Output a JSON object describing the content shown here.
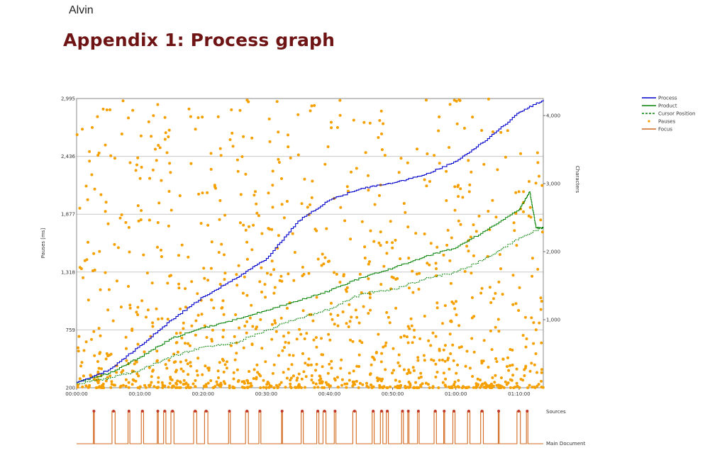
{
  "author": "Alvin",
  "heading": "Appendix 1: Process graph",
  "chart_data": {
    "type": "line",
    "left_axis": {
      "label": "Pauses [ms]",
      "range": [
        200,
        2995
      ],
      "ticks": [
        "200",
        "759",
        "1,318",
        "1,877",
        "2,436",
        "2,995"
      ],
      "tick_values": [
        200,
        759,
        1318,
        1877,
        2436,
        2995
      ]
    },
    "right_axis": {
      "label": "Characters",
      "range": [
        0,
        4250
      ],
      "ticks": [
        "1,000",
        "2,000",
        "3,000",
        "4,000"
      ],
      "tick_values": [
        1000,
        2000,
        3000,
        4000
      ]
    },
    "x_axis": {
      "range_seconds": [
        0,
        4430
      ],
      "ticks": [
        "00:00:00",
        "00:10:00",
        "00:20:00",
        "00:30:00",
        "00:40:00",
        "00:50:00",
        "01:00:00",
        "01:10:00"
      ],
      "tick_seconds": [
        0,
        600,
        1200,
        1800,
        2400,
        3000,
        3600,
        4200
      ]
    },
    "legend": {
      "placement": "top-right",
      "entries": [
        {
          "name": "Process",
          "color": "#0000cc",
          "style": "solid"
        },
        {
          "name": "Product",
          "color": "#008000",
          "style": "solid"
        },
        {
          "name": "Cursor Position",
          "color": "#008000",
          "style": "dashed"
        },
        {
          "name": "Pauses",
          "color": "#f5a000",
          "style": "dot"
        },
        {
          "name": "Focus",
          "color": "#d2691e",
          "style": "solid"
        }
      ]
    },
    "grid": true,
    "series": [
      {
        "name": "Process",
        "axis": "right",
        "x_seconds": [
          0,
          300,
          600,
          900,
          1200,
          1500,
          1800,
          2100,
          2400,
          2700,
          3000,
          3300,
          3600,
          3900,
          4200,
          4430
        ],
        "y_chars": [
          80,
          260,
          620,
          1000,
          1340,
          1600,
          1900,
          2450,
          2760,
          2930,
          3010,
          3130,
          3330,
          3660,
          4050,
          4230
        ]
      },
      {
        "name": "Product",
        "axis": "right",
        "x_seconds": [
          0,
          300,
          600,
          900,
          1200,
          1500,
          1800,
          2100,
          2400,
          2700,
          3000,
          3300,
          3600,
          3900,
          4200,
          4300,
          4360,
          4430
        ],
        "y_chars": [
          80,
          210,
          450,
          730,
          880,
          1000,
          1140,
          1280,
          1430,
          1620,
          1760,
          1930,
          2060,
          2330,
          2620,
          2880,
          2350,
          2350
        ]
      },
      {
        "name": "Cursor Position",
        "axis": "right",
        "x_seconds": [
          0,
          300,
          600,
          900,
          1200,
          1500,
          1800,
          2100,
          2400,
          2700,
          3000,
          3300,
          3600,
          3900,
          4200,
          4430
        ],
        "y_chars": [
          60,
          140,
          260,
          460,
          600,
          660,
          850,
          1020,
          1160,
          1380,
          1450,
          1600,
          1700,
          1920,
          2200,
          2360
        ]
      },
      {
        "name": "Focus",
        "categories": [
          "Sources",
          "Main Document"
        ]
      }
    ],
    "pauses": {
      "count": 1200,
      "axis": "left",
      "range_ms": [
        200,
        2995
      ]
    },
    "focus_labels": [
      "Sources",
      "Main Document"
    ]
  }
}
